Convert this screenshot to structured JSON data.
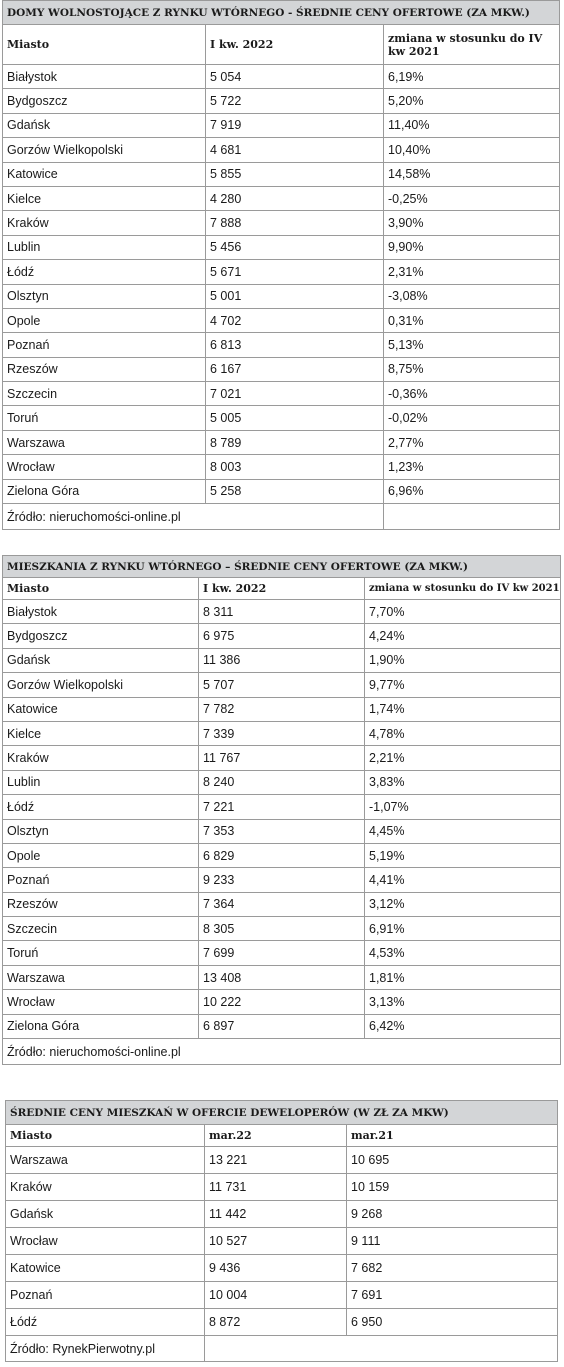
{
  "table1": {
    "title": "DOMY WOLNOSTOJĄCE Z RYNKU WTÓRNEGO - ŚREDNIE CENY OFERTOWE (ZA MKW.)",
    "headers": [
      "Miasto",
      "I kw. 2022",
      "zmiana w stosunku do IV kw 2021"
    ],
    "rows": [
      [
        "Białystok",
        "5 054",
        "6,19%"
      ],
      [
        "Bydgoszcz",
        "5 722",
        "5,20%"
      ],
      [
        "Gdańsk",
        "7 919",
        "11,40%"
      ],
      [
        "Gorzów Wielkopolski",
        "4 681",
        "10,40%"
      ],
      [
        "Katowice",
        "5 855",
        "14,58%"
      ],
      [
        "Kielce",
        "4 280",
        "-0,25%"
      ],
      [
        "Kraków",
        "7 888",
        "3,90%"
      ],
      [
        "Lublin",
        "5 456",
        "9,90%"
      ],
      [
        "Łódź",
        "5 671",
        "2,31%"
      ],
      [
        "Olsztyn",
        "5 001",
        "-3,08%"
      ],
      [
        "Opole",
        "4 702",
        "0,31%"
      ],
      [
        "Poznań",
        "6 813",
        "5,13%"
      ],
      [
        "Rzeszów",
        "6 167",
        "8,75%"
      ],
      [
        "Szczecin",
        "7 021",
        "-0,36%"
      ],
      [
        "Toruń",
        "5 005",
        "-0,02%"
      ],
      [
        "Warszawa",
        "8 789",
        "2,77%"
      ],
      [
        "Wrocław",
        "8 003",
        "1,23%"
      ],
      [
        "Zielona Góra",
        "5 258",
        "6,96%"
      ]
    ],
    "source": "Źródło: nieruchomości-online.pl"
  },
  "table2": {
    "title": "MIESZKANIA Z RYNKU WTÓRNEGO – ŚREDNIE CENY OFERTOWE (ZA MKW.)",
    "headers": [
      "Miasto",
      "I kw. 2022",
      "zmiana w stosunku do IV kw 2021"
    ],
    "rows": [
      [
        "Białystok",
        "8 311",
        "7,70%"
      ],
      [
        "Bydgoszcz",
        "6 975",
        "4,24%"
      ],
      [
        "Gdańsk",
        "11 386",
        "1,90%"
      ],
      [
        "Gorzów Wielkopolski",
        "5 707",
        "9,77%"
      ],
      [
        "Katowice",
        "7 782",
        "1,74%"
      ],
      [
        "Kielce",
        "7 339",
        "4,78%"
      ],
      [
        "Kraków",
        "11 767",
        "2,21%"
      ],
      [
        "Lublin",
        "8 240",
        "3,83%"
      ],
      [
        "Łódź",
        "7 221",
        "-1,07%"
      ],
      [
        "Olsztyn",
        "7 353",
        "4,45%"
      ],
      [
        "Opole",
        "6 829",
        "5,19%"
      ],
      [
        "Poznań",
        "9 233",
        "4,41%"
      ],
      [
        "Rzeszów",
        "7 364",
        "3,12%"
      ],
      [
        "Szczecin",
        "8 305",
        "6,91%"
      ],
      [
        "Toruń",
        "7 699",
        "4,53%"
      ],
      [
        "Warszawa",
        "13 408",
        "1,81%"
      ],
      [
        "Wrocław",
        "10 222",
        "3,13%"
      ],
      [
        "Zielona Góra",
        "6 897",
        "6,42%"
      ]
    ],
    "source": "Źródło: nieruchomości-online.pl"
  },
  "table3": {
    "title": "ŚREDNIE CENY MIESZKAŃ W OFERCIE DEWELOPERÓW (W ZŁ ZA MKW)",
    "headers": [
      "Miasto",
      "mar.22",
      "mar.21"
    ],
    "rows": [
      [
        "Warszawa",
        "13 221",
        "10 695"
      ],
      [
        "Kraków",
        "11 731",
        "10 159"
      ],
      [
        "Gdańsk",
        "11 442",
        "9 268"
      ],
      [
        "Wrocław",
        "10 527",
        "9 111"
      ],
      [
        "Katowice",
        "9 436",
        "7 682"
      ],
      [
        "Poznań",
        "10 004",
        "7 691"
      ],
      [
        "Łódź",
        "8 872",
        "6 950"
      ]
    ],
    "source": "Źródło: RynekPierwotny.pl"
  }
}
